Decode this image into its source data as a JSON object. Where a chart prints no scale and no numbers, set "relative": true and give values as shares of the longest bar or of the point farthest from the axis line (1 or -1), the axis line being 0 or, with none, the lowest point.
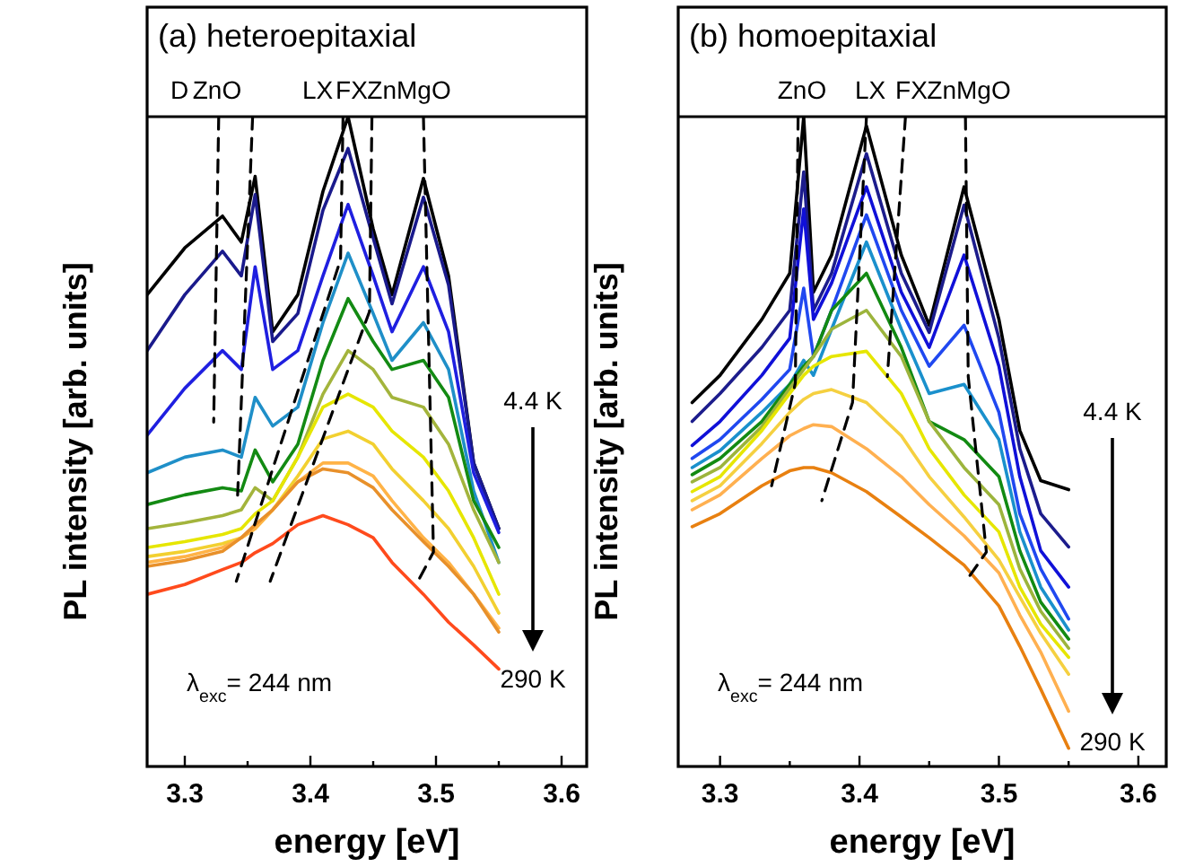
{
  "chart_data": [
    {
      "type": "line",
      "title": "(a) heteroepitaxial",
      "xlabel": "energy [eV]",
      "ylabel": "PL intensity [arb. units]",
      "relative": true,
      "line_style": "solid",
      "xlim": [
        3.27,
        3.62
      ],
      "xticks": [
        3.3,
        {
          "value": 3.35,
          "label": null
        },
        3.4,
        {
          "value": 3.45,
          "label": null
        },
        3.5,
        {
          "value": 3.55,
          "label": null
        },
        3.6
      ],
      "x": [
        3.27,
        3.3,
        3.33,
        3.345,
        3.356,
        3.37,
        3.39,
        3.41,
        3.43,
        3.45,
        3.465,
        3.49,
        3.51,
        3.53,
        3.55
      ],
      "annotations": [
        "λ$_{exc}$= 244 nm",
        "4.4 K",
        "290 K",
        "D",
        "ZnO",
        "LX",
        "FX",
        "ZnMgO"
      ],
      "series": [
        {
          "color": "#000000",
          "values": [
            0.726,
            0.798,
            0.847,
            0.807,
            0.908,
            0.669,
            0.726,
            0.885,
            1.0,
            0.827,
            0.726,
            0.905,
            0.755,
            0.467,
            0.366
          ]
        },
        {
          "color": "#1a1a8c",
          "values": [
            0.64,
            0.726,
            0.793,
            0.755,
            0.88,
            0.654,
            0.697,
            0.856,
            0.951,
            0.813,
            0.712,
            0.876,
            0.741,
            0.467,
            0.366
          ]
        },
        {
          "color": "#1f1fe0",
          "values": [
            0.51,
            0.582,
            0.64,
            0.611,
            0.769,
            0.611,
            0.64,
            0.755,
            0.865,
            0.755,
            0.669,
            0.769,
            0.669,
            0.452,
            0.36
          ]
        },
        {
          "color": "#1f8fc8",
          "values": [
            0.452,
            0.476,
            0.487,
            0.476,
            0.568,
            0.524,
            0.553,
            0.683,
            0.79,
            0.697,
            0.625,
            0.683,
            0.611,
            0.424,
            0.314
          ]
        },
        {
          "color": "#138a13",
          "values": [
            0.403,
            0.418,
            0.429,
            0.424,
            0.487,
            0.438,
            0.496,
            0.625,
            0.72,
            0.654,
            0.611,
            0.625,
            0.568,
            0.409,
            0.337
          ]
        },
        {
          "color": "#a3b43c",
          "values": [
            0.366,
            0.375,
            0.386,
            0.395,
            0.429,
            0.409,
            0.476,
            0.573,
            0.64,
            0.611,
            0.568,
            0.553,
            0.496,
            0.395,
            0.314
          ]
        },
        {
          "color": "#e6e600",
          "values": [
            0.337,
            0.346,
            0.357,
            0.366,
            0.389,
            0.409,
            0.476,
            0.553,
            0.573,
            0.553,
            0.516,
            0.476,
            0.424,
            0.352,
            0.265
          ]
        },
        {
          "color": "#f2d030",
          "values": [
            0.323,
            0.331,
            0.343,
            0.352,
            0.366,
            0.395,
            0.447,
            0.504,
            0.516,
            0.496,
            0.458,
            0.409,
            0.366,
            0.308,
            0.236
          ]
        },
        {
          "color": "#ffb347",
          "values": [
            0.314,
            0.323,
            0.337,
            0.352,
            0.366,
            0.395,
            0.438,
            0.467,
            0.467,
            0.447,
            0.409,
            0.352,
            0.314,
            0.265,
            0.213
          ]
        },
        {
          "color": "#e8902a",
          "values": [
            0.308,
            0.317,
            0.331,
            0.352,
            0.372,
            0.395,
            0.438,
            0.458,
            0.452,
            0.429,
            0.395,
            0.346,
            0.308,
            0.265,
            0.207
          ]
        },
        {
          "color": "#ff4a1c",
          "values": [
            0.265,
            0.28,
            0.303,
            0.314,
            0.329,
            0.343,
            0.372,
            0.386,
            0.372,
            0.352,
            0.314,
            0.265,
            0.222,
            0.187,
            0.15
          ]
        },
        {
          "color": "#000000",
          "line_style": "dashed",
          "x": [
            3.327,
            3.323
          ],
          "values": [
            1.0,
            0.53
          ]
        },
        {
          "color": "#000000",
          "line_style": "dashed",
          "x": [
            3.354,
            3.342
          ],
          "values": [
            1.0,
            0.415
          ]
        },
        {
          "color": "#000000",
          "line_style": "dashed",
          "x": [
            3.426,
            3.424,
            3.341
          ],
          "values": [
            1.0,
            0.78,
            0.285
          ]
        },
        {
          "color": "#000000",
          "line_style": "dashed",
          "x": [
            3.449,
            3.447,
            3.368
          ],
          "values": [
            1.0,
            0.7,
            0.285
          ]
        },
        {
          "color": "#000000",
          "line_style": "dashed",
          "x": [
            3.49,
            3.498,
            3.487
          ],
          "values": [
            1.0,
            0.33,
            0.29
          ]
        }
      ]
    },
    {
      "type": "line",
      "title": "(b) homoepitaxial",
      "xlabel": "energy [eV]",
      "ylabel": "PL intensity [arb. units]",
      "relative": true,
      "line_style": "solid",
      "xlim": [
        3.27,
        3.62
      ],
      "xticks": [
        3.3,
        {
          "value": 3.35,
          "label": null
        },
        3.4,
        {
          "value": 3.45,
          "label": null
        },
        3.5,
        {
          "value": 3.55,
          "label": null
        },
        3.6
      ],
      "x": [
        3.28,
        3.3,
        3.33,
        3.35,
        3.36,
        3.367,
        3.38,
        3.405,
        3.43,
        3.45,
        3.475,
        3.5,
        3.515,
        3.53,
        3.55
      ],
      "annotations": [
        "λ$_{exc}$= 244 nm",
        "4.4 K",
        "290 K",
        "ZnO",
        "LX",
        "FX",
        "ZnMgO"
      ],
      "series": [
        {
          "color": "#000000",
          "values": [
            0.56,
            0.602,
            0.688,
            0.759,
            1.0,
            0.73,
            0.787,
            0.986,
            0.787,
            0.679,
            0.892,
            0.688,
            0.517,
            0.44,
            0.426
          ]
        },
        {
          "color": "#1c1c8c",
          "values": [
            0.531,
            0.574,
            0.645,
            0.702,
            0.915,
            0.702,
            0.759,
            0.943,
            0.759,
            0.668,
            0.864,
            0.659,
            0.489,
            0.389,
            0.338
          ]
        },
        {
          "color": "#1010d8",
          "values": [
            0.494,
            0.531,
            0.602,
            0.659,
            0.858,
            0.688,
            0.744,
            0.892,
            0.73,
            0.645,
            0.787,
            0.616,
            0.446,
            0.332,
            0.276
          ]
        },
        {
          "color": "#2048f0",
          "values": [
            0.474,
            0.503,
            0.565,
            0.611,
            0.736,
            0.631,
            0.702,
            0.849,
            0.702,
            0.616,
            0.679,
            0.545,
            0.389,
            0.304,
            0.227
          ]
        },
        {
          "color": "#1a90cc",
          "values": [
            0.46,
            0.486,
            0.545,
            0.588,
            0.625,
            0.602,
            0.673,
            0.807,
            0.673,
            0.574,
            0.588,
            0.503,
            0.361,
            0.276,
            0.21
          ]
        },
        {
          "color": "#128a12",
          "values": [
            0.449,
            0.474,
            0.531,
            0.588,
            0.616,
            0.631,
            0.702,
            0.759,
            0.645,
            0.531,
            0.503,
            0.446,
            0.332,
            0.253,
            0.196
          ]
        },
        {
          "color": "#9cb43c",
          "values": [
            0.438,
            0.46,
            0.523,
            0.582,
            0.611,
            0.631,
            0.673,
            0.702,
            0.631,
            0.531,
            0.46,
            0.403,
            0.304,
            0.239,
            0.182
          ]
        },
        {
          "color": "#e6e600",
          "values": [
            0.423,
            0.446,
            0.517,
            0.574,
            0.602,
            0.616,
            0.631,
            0.639,
            0.574,
            0.489,
            0.418,
            0.361,
            0.276,
            0.219,
            0.168
          ]
        },
        {
          "color": "#f5d040",
          "values": [
            0.409,
            0.432,
            0.497,
            0.545,
            0.565,
            0.574,
            0.58,
            0.56,
            0.509,
            0.446,
            0.384,
            0.318,
            0.261,
            0.205,
            0.142
          ]
        },
        {
          "color": "#ffb050",
          "values": [
            0.395,
            0.418,
            0.474,
            0.509,
            0.52,
            0.526,
            0.523,
            0.489,
            0.446,
            0.403,
            0.355,
            0.298,
            0.233,
            0.176,
            0.085
          ]
        },
        {
          "color": "#e88010",
          "values": [
            0.369,
            0.389,
            0.432,
            0.455,
            0.46,
            0.46,
            0.452,
            0.423,
            0.384,
            0.352,
            0.31,
            0.247,
            0.185,
            0.119,
            0.028
          ]
        },
        {
          "color": "#000000",
          "line_style": "dashed",
          "x": [
            3.356,
            3.354,
            3.337
          ],
          "values": [
            1.0,
            0.59,
            0.432
          ]
        },
        {
          "color": "#000000",
          "line_style": "dashed",
          "x": [
            3.405,
            3.395,
            3.373
          ],
          "values": [
            1.0,
            0.56,
            0.409
          ]
        },
        {
          "color": "#000000",
          "line_style": "dashed",
          "x": [
            3.433,
            3.42
          ],
          "values": [
            1.0,
            0.6
          ]
        },
        {
          "color": "#000000",
          "line_style": "dashed",
          "x": [
            3.476,
            3.478,
            3.491,
            3.476
          ],
          "values": [
            1.0,
            0.6,
            0.33,
            0.284
          ]
        }
      ]
    }
  ]
}
